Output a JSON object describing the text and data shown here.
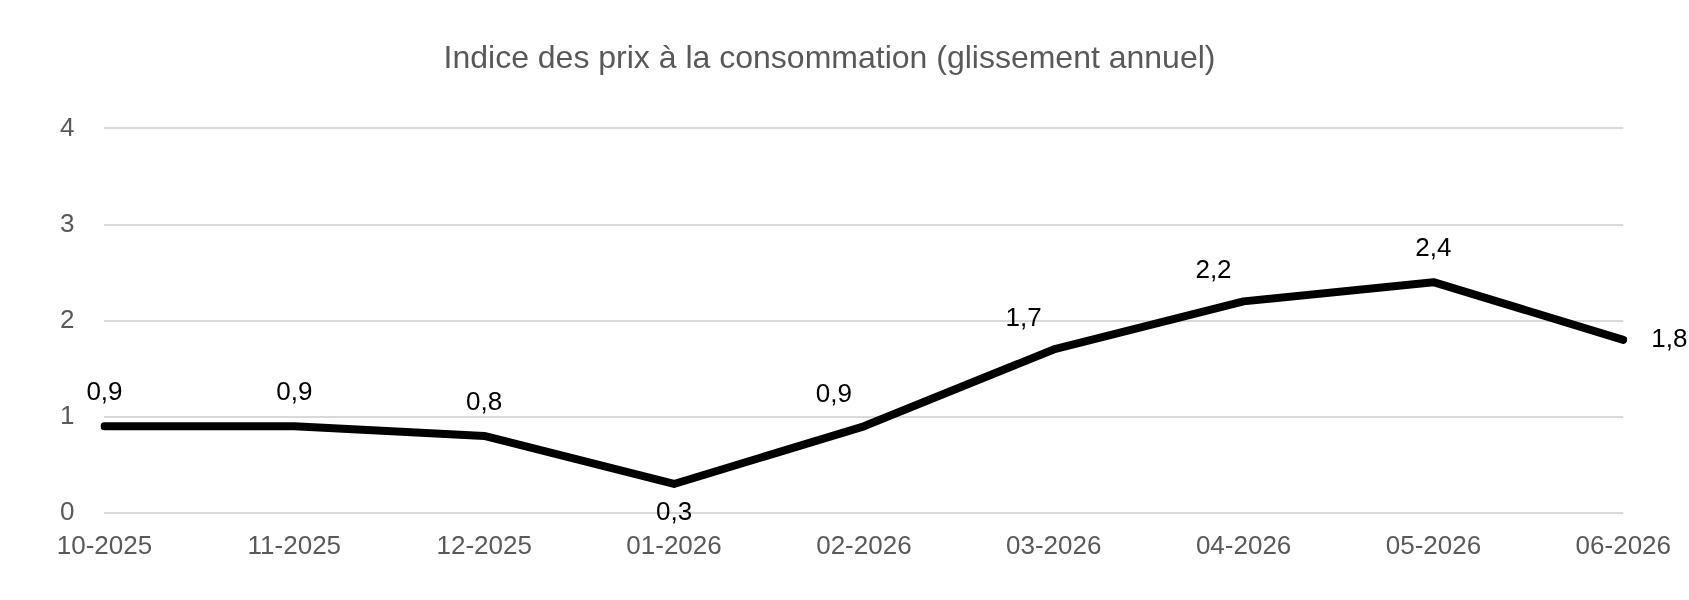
{
  "chart_data": {
    "type": "line",
    "title": "Indice des prix à la consommation (glissement annuel)",
    "categories": [
      "10-2025",
      "11-2025",
      "12-2025",
      "01-2026",
      "02-2026",
      "03-2026",
      "04-2026",
      "05-2026",
      "06-2026"
    ],
    "series": [
      {
        "color": "#000000",
        "values": [
          0.9,
          0.9,
          0.8,
          0.3,
          0.9,
          1.7,
          2.2,
          2.4,
          1.8
        ],
        "value_labels": [
          "0,9",
          "0,9",
          "0,8",
          "0,3",
          "0,9",
          "1,7",
          "2,2",
          "2,4",
          "1,8"
        ]
      }
    ],
    "ylim": [
      0,
      4
    ],
    "yticks": [
      0,
      1,
      2,
      3,
      4
    ],
    "grid": "y",
    "legend": false,
    "marker": "none",
    "line_style": "solid"
  }
}
